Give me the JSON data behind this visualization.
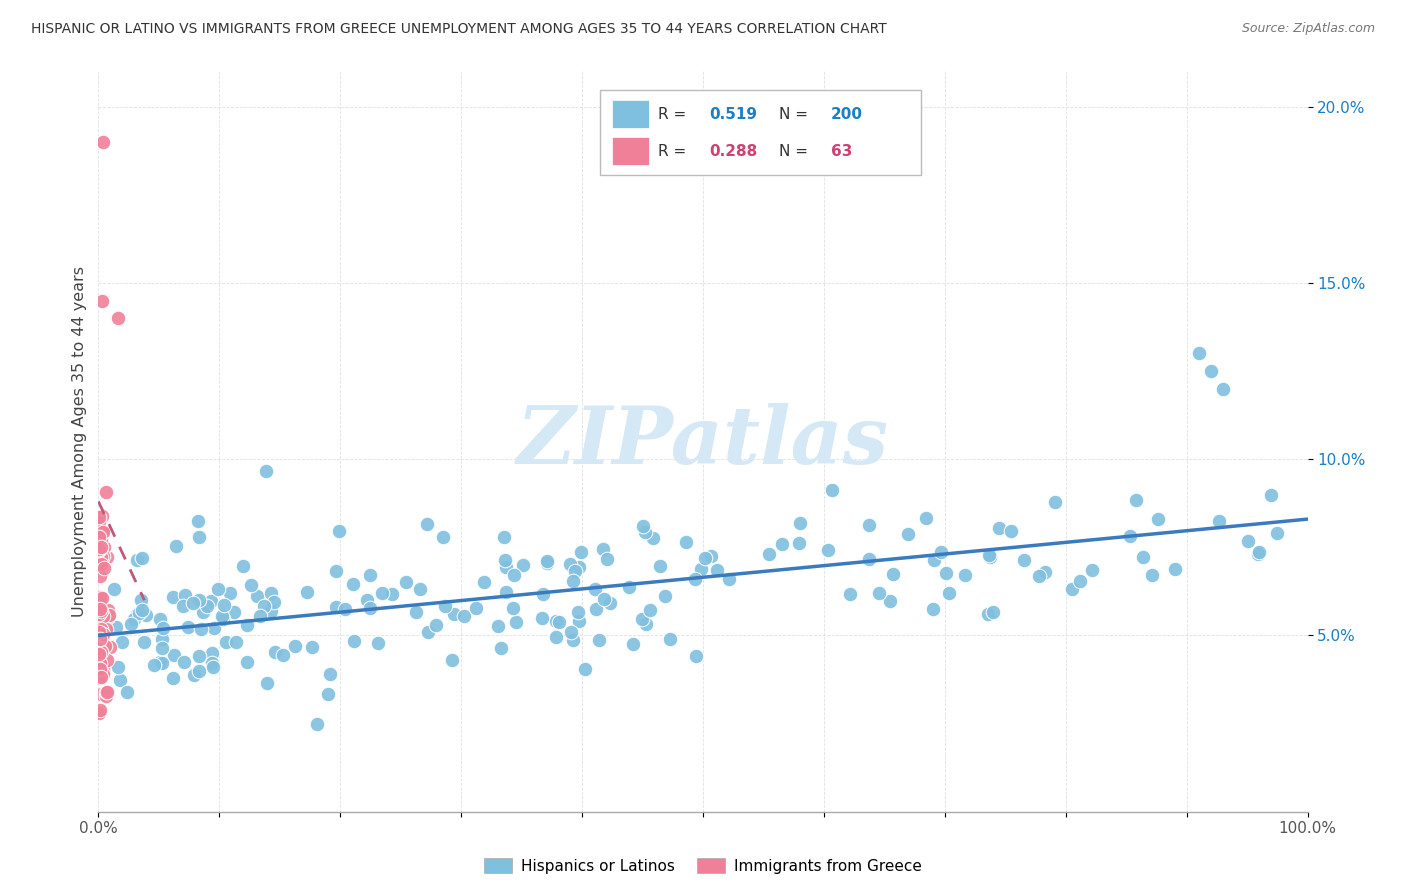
{
  "title": "HISPANIC OR LATINO VS IMMIGRANTS FROM GREECE UNEMPLOYMENT AMONG AGES 35 TO 44 YEARS CORRELATION CHART",
  "source": "Source: ZipAtlas.com",
  "ylabel": "Unemployment Among Ages 35 to 44 years",
  "xlim": [
    0.0,
    1.0
  ],
  "ylim": [
    0.0,
    0.21
  ],
  "ytick_vals": [
    0.05,
    0.1,
    0.15,
    0.2
  ],
  "ytick_labels": [
    "5.0%",
    "10.0%",
    "15.0%",
    "20.0%"
  ],
  "xtick_vals": [
    0.0,
    0.1,
    0.2,
    0.3,
    0.4,
    0.5,
    0.6,
    0.7,
    0.8,
    0.9,
    1.0
  ],
  "xtick_labels": [
    "0.0%",
    "",
    "",
    "",
    "",
    "",
    "",
    "",
    "",
    "",
    "100.0%"
  ],
  "blue_R": "0.519",
  "blue_N": "200",
  "pink_R": "0.288",
  "pink_N": "63",
  "blue_color": "#7fbfdf",
  "pink_color": "#f08098",
  "blue_line_color": "#3a7abf",
  "pink_line_color": "#c05878",
  "grid_color": "#dddddd",
  "watermark_color": "#d5e8f5",
  "watermark_text": "ZIPatlas",
  "background_color": "#ffffff",
  "legend_R_color": "#333333",
  "legend_blue_val_color": "#1a7fc4",
  "legend_pink_val_color": "#d04070",
  "bottom_label_blue": "Hispanics or Latinos",
  "bottom_label_pink": "Immigrants from Greece"
}
